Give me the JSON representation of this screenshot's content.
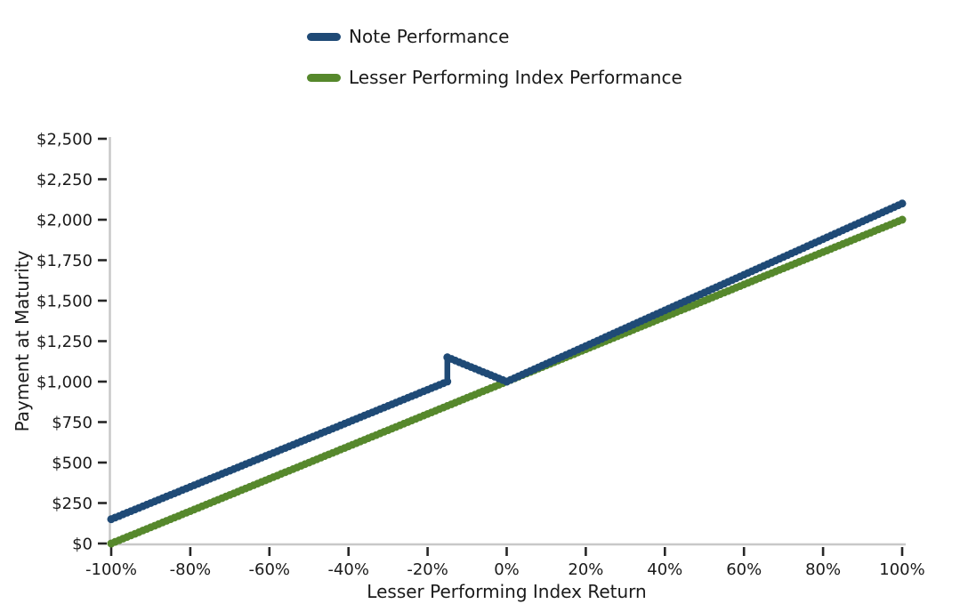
{
  "chart_data": {
    "type": "line",
    "title": "",
    "xlabel": "Lesser Performing Index Return",
    "ylabel": "Payment at Maturity",
    "xlim": [
      -1,
      1
    ],
    "ylim": [
      0,
      2500
    ],
    "grid": false,
    "legend_position": "top-left",
    "x_ticks": [
      {
        "v": -1.0,
        "label": "-100%"
      },
      {
        "v": -0.8,
        "label": "-80%"
      },
      {
        "v": -0.6,
        "label": "-60%"
      },
      {
        "v": -0.4,
        "label": "-40%"
      },
      {
        "v": -0.2,
        "label": "-20%"
      },
      {
        "v": 0.0,
        "label": "0%"
      },
      {
        "v": 0.2,
        "label": "20%"
      },
      {
        "v": 0.4,
        "label": "40%"
      },
      {
        "v": 0.6,
        "label": "60%"
      },
      {
        "v": 0.8,
        "label": "80%"
      },
      {
        "v": 1.0,
        "label": "100%"
      }
    ],
    "y_ticks": [
      {
        "v": 0,
        "label": "$0"
      },
      {
        "v": 250,
        "label": "$250"
      },
      {
        "v": 500,
        "label": "$500"
      },
      {
        "v": 750,
        "label": "$750"
      },
      {
        "v": 1000,
        "label": "$1,000"
      },
      {
        "v": 1250,
        "label": "$1,250"
      },
      {
        "v": 1500,
        "label": "$1,500"
      },
      {
        "v": 1750,
        "label": "$1,750"
      },
      {
        "v": 2000,
        "label": "$2,000"
      },
      {
        "v": 2250,
        "label": "$2,250"
      },
      {
        "v": 2500,
        "label": "$2,500"
      }
    ],
    "series": [
      {
        "name": "Note Performance",
        "color": "#1f4a76",
        "style": "dotted-line",
        "points": [
          [
            -1,
            150
          ],
          [
            -0.15,
            1000
          ],
          [
            -0.15,
            1150
          ],
          [
            0,
            1000
          ],
          [
            1,
            2100
          ]
        ]
      },
      {
        "name": "Lesser Performing Index Performance",
        "color": "#56882c",
        "style": "dotted-line",
        "points": [
          [
            -1,
            0
          ],
          [
            1,
            2000
          ]
        ]
      }
    ]
  },
  "colors": {
    "spine": "#c8c8c8",
    "tick": "#262626",
    "text": "#1a1a1a",
    "background": "#ffffff"
  }
}
